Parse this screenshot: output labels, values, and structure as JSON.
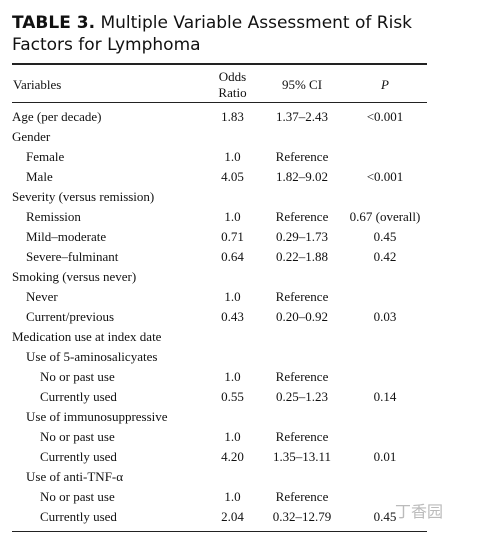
{
  "header": {
    "label": "TABLE 3.",
    "title": "Multiple Variable Assessment of Risk Factors for Lymphoma"
  },
  "table": {
    "columns": [
      "Variables",
      "Odds Ratio",
      "95% CI",
      "P"
    ],
    "rows": [
      {
        "label": "Age (per decade)",
        "odds_ratio": "1.83",
        "ci": "1.37–2.43",
        "p": "<0.001"
      },
      {
        "label": "Gender"
      },
      {
        "label": "Female",
        "odds_ratio": "1.0",
        "ci": "Reference"
      },
      {
        "label": "Male",
        "odds_ratio": "4.05",
        "ci": "1.82–9.02",
        "p": "<0.001"
      },
      {
        "label": "Severity (versus remission)"
      },
      {
        "label": "Remission",
        "odds_ratio": "1.0",
        "ci": "Reference",
        "p": "0.67 (overall)"
      },
      {
        "label": "Mild–moderate",
        "odds_ratio": "0.71",
        "ci": "0.29–1.73",
        "p": "0.45"
      },
      {
        "label": "Severe–fulminant",
        "odds_ratio": "0.64",
        "ci": "0.22–1.88",
        "p": "0.42"
      },
      {
        "label": "Smoking (versus never)"
      },
      {
        "label": "Never",
        "odds_ratio": "1.0",
        "ci": "Reference"
      },
      {
        "label": "Current/previous",
        "odds_ratio": "0.43",
        "ci": "0.20–0.92",
        "p": "0.03"
      },
      {
        "label": "Medication use at index date"
      },
      {
        "label": "Use of 5-aminosalicyates"
      },
      {
        "label": "No or past use",
        "odds_ratio": "1.0",
        "ci": "Reference"
      },
      {
        "label": "Currently used",
        "odds_ratio": "0.55",
        "ci": "0.25–1.23",
        "p": "0.14"
      },
      {
        "label": "Use of immunosuppressive"
      },
      {
        "label": "No or past use",
        "odds_ratio": "1.0",
        "ci": "Reference"
      },
      {
        "label": "Currently used",
        "odds_ratio": "4.20",
        "ci": "1.35–13.11",
        "p": "0.01"
      },
      {
        "label": "Use of anti-TNF-α"
      },
      {
        "label": "No or past use",
        "odds_ratio": "1.0",
        "ci": "Reference"
      },
      {
        "label": "Currently used",
        "odds_ratio": "2.04",
        "ci": "0.32–12.79",
        "p": "0.45"
      }
    ]
  },
  "watermark": "丁香园"
}
